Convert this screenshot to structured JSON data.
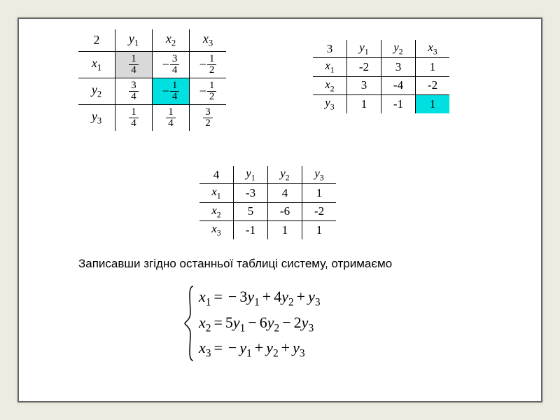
{
  "table2": {
    "corner": "2",
    "cols": [
      "y₁",
      "x₂",
      "x₃"
    ],
    "rows": [
      {
        "head": "x₁",
        "cells": [
          {
            "type": "frac",
            "sign": "",
            "num": "1",
            "den": "4",
            "hl": "hl-grey"
          },
          {
            "type": "frac",
            "sign": "−",
            "num": "3",
            "den": "4"
          },
          {
            "type": "frac",
            "sign": "−",
            "num": "1",
            "den": "2"
          }
        ]
      },
      {
        "head": "y₂",
        "cells": [
          {
            "type": "frac",
            "sign": "",
            "num": "3",
            "den": "4"
          },
          {
            "type": "frac",
            "sign": "−",
            "num": "1",
            "den": "4",
            "hl": "hl-cyan"
          },
          {
            "type": "frac",
            "sign": "−",
            "num": "1",
            "den": "2"
          }
        ]
      },
      {
        "head": "y₃",
        "cells": [
          {
            "type": "frac",
            "sign": "",
            "num": "1",
            "den": "4"
          },
          {
            "type": "frac",
            "sign": "",
            "num": "1",
            "den": "4"
          },
          {
            "type": "frac",
            "sign": "",
            "num": "3",
            "den": "2"
          }
        ]
      }
    ]
  },
  "table3": {
    "corner": "3",
    "cols": [
      "y₁",
      "y₂",
      "x₃"
    ],
    "rows": [
      {
        "head": "x₁",
        "cells": [
          {
            "v": "-2"
          },
          {
            "v": "3"
          },
          {
            "v": "1"
          }
        ]
      },
      {
        "head": "x₂",
        "cells": [
          {
            "v": "3"
          },
          {
            "v": "-4"
          },
          {
            "v": "-2"
          }
        ]
      },
      {
        "head": "y₃",
        "cells": [
          {
            "v": "1"
          },
          {
            "v": "-1"
          },
          {
            "v": "1",
            "hl": "hl-cyan"
          }
        ]
      }
    ]
  },
  "table4": {
    "corner": "4",
    "cols": [
      "y₁",
      "y₂",
      "y₃"
    ],
    "rows": [
      {
        "head": "x₁",
        "cells": [
          {
            "v": "-3"
          },
          {
            "v": "4"
          },
          {
            "v": "1"
          }
        ]
      },
      {
        "head": "x₂",
        "cells": [
          {
            "v": "5"
          },
          {
            "v": "-6"
          },
          {
            "v": "-2"
          }
        ]
      },
      {
        "head": "x₃",
        "cells": [
          {
            "v": "-1"
          },
          {
            "v": "1"
          },
          {
            "v": "1"
          }
        ]
      }
    ]
  },
  "prose": "Записавши згідно останньої таблиці систему, отримаємо",
  "system": {
    "lines": [
      [
        {
          "t": "var",
          "v": "x",
          "s": "1"
        },
        {
          "t": "op",
          "v": "="
        },
        {
          "t": "op",
          "v": "−"
        },
        {
          "t": "num",
          "v": "3"
        },
        {
          "t": "var",
          "v": "y",
          "s": "1"
        },
        {
          "t": "op",
          "v": "+"
        },
        {
          "t": "num",
          "v": "4"
        },
        {
          "t": "var",
          "v": "y",
          "s": "2"
        },
        {
          "t": "op",
          "v": "+"
        },
        {
          "t": "var",
          "v": "y",
          "s": "3"
        }
      ],
      [
        {
          "t": "var",
          "v": "x",
          "s": "2"
        },
        {
          "t": "op",
          "v": "="
        },
        {
          "t": "num",
          "v": "5"
        },
        {
          "t": "var",
          "v": "y",
          "s": "1"
        },
        {
          "t": "op",
          "v": "−"
        },
        {
          "t": "num",
          "v": "6"
        },
        {
          "t": "var",
          "v": "y",
          "s": "2"
        },
        {
          "t": "op",
          "v": "−"
        },
        {
          "t": "num",
          "v": "2"
        },
        {
          "t": "var",
          "v": "y",
          "s": "3"
        }
      ],
      [
        {
          "t": "var",
          "v": "x",
          "s": "3"
        },
        {
          "t": "op",
          "v": "="
        },
        {
          "t": "op",
          "v": "−"
        },
        {
          "t": "var",
          "v": "y",
          "s": "1"
        },
        {
          "t": "op",
          "v": "+"
        },
        {
          "t": "var",
          "v": "y",
          "s": "2"
        },
        {
          "t": "op",
          "v": "+"
        },
        {
          "t": "var",
          "v": "y",
          "s": "3"
        }
      ]
    ]
  },
  "colors": {
    "grey": "#d9d9d9",
    "cyan": "#00e0e0",
    "bg": "#eeece1",
    "frame": "#666"
  }
}
